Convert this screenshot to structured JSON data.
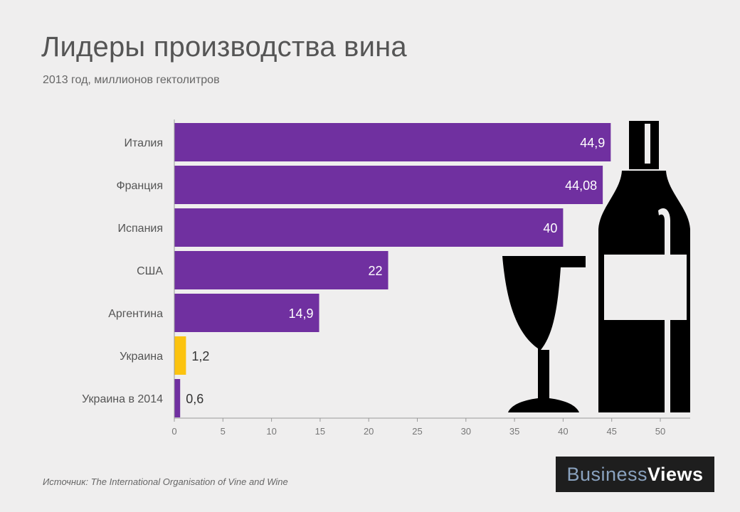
{
  "header": {
    "title": "Лидеры производства вина",
    "subtitle": "2013 год, миллионов гектолитров"
  },
  "footer": {
    "source": "Источник: The International Organisation of Vine and Wine",
    "logo_part1": "Business",
    "logo_part2": "Views"
  },
  "chart_data": {
    "type": "bar",
    "orientation": "horizontal",
    "title": "Лидеры производства вина",
    "subtitle": "2013 год, миллионов гектолитров",
    "categories": [
      "Италия",
      "Франция",
      "Испания",
      "США",
      "Аргентина",
      "Украина",
      "Украина в 2014"
    ],
    "values": [
      44.9,
      44.08,
      40,
      22,
      14.9,
      1.2,
      0.6
    ],
    "value_labels": [
      "44,9",
      "44,08",
      "40",
      "22",
      "14,9",
      "1,2",
      "0,6"
    ],
    "bar_colors": [
      "#7030a0",
      "#7030a0",
      "#7030a0",
      "#7030a0",
      "#7030a0",
      "#fcc30f",
      "#7030a0"
    ],
    "xlim": [
      0,
      50
    ],
    "xticks": [
      0,
      5,
      10,
      15,
      20,
      25,
      30,
      35,
      40,
      45,
      50
    ],
    "grid": false,
    "legend": "none",
    "decoration_icons": [
      "wine-glass-icon",
      "wine-bottle-icon"
    ]
  }
}
